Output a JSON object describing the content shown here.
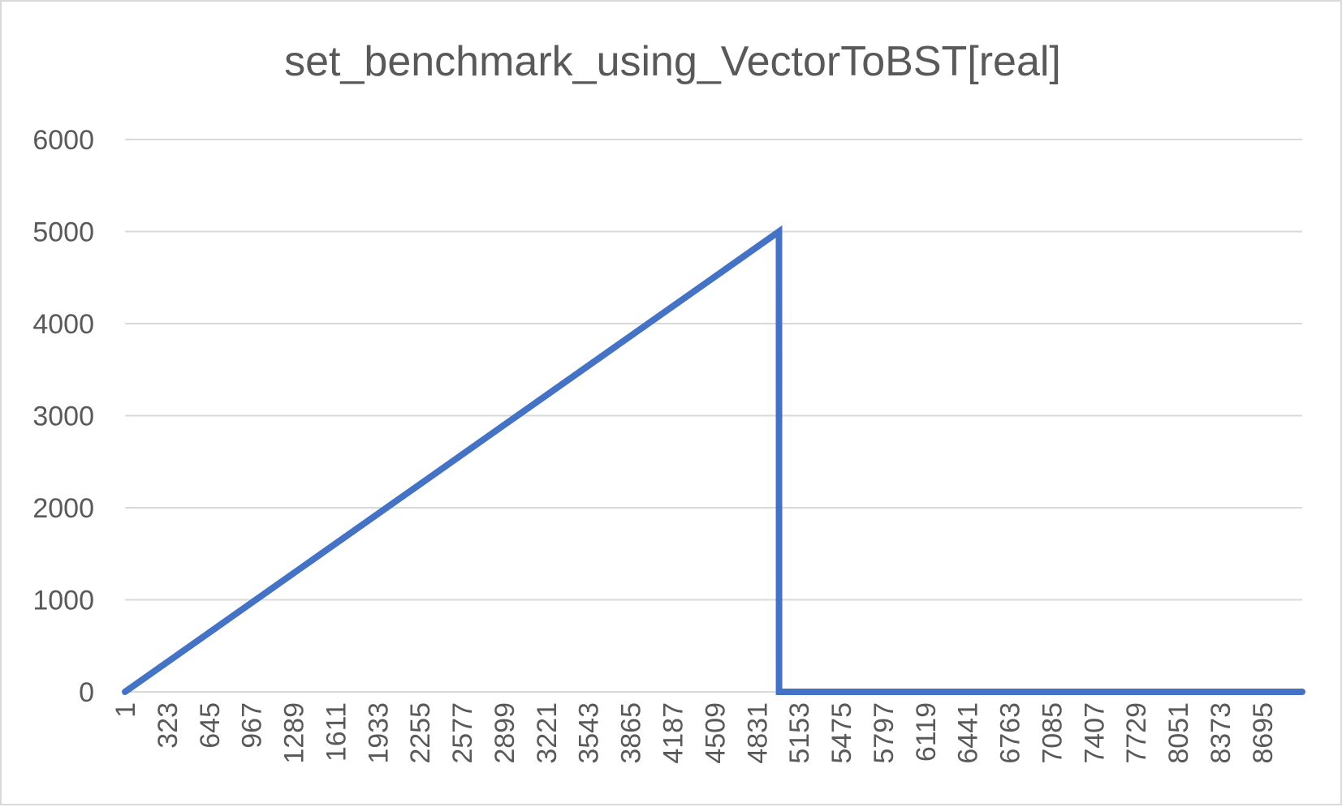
{
  "chart_data": {
    "type": "line",
    "title": "set_benchmark_using_VectorToBST[real]",
    "xlabel": "",
    "ylabel": "",
    "x_tick_labels": [
      "1",
      "323",
      "645",
      "967",
      "1289",
      "1611",
      "1933",
      "2255",
      "2577",
      "2899",
      "3221",
      "3543",
      "3865",
      "4187",
      "4509",
      "4831",
      "5153",
      "5475",
      "5797",
      "6119",
      "6441",
      "6763",
      "7085",
      "7407",
      "7729",
      "8051",
      "8373",
      "8695"
    ],
    "x_range": [
      1,
      9000
    ],
    "y_range": [
      0,
      6000
    ],
    "y_ticks": [
      0,
      1000,
      2000,
      3000,
      4000,
      5000,
      6000
    ],
    "grid": true,
    "legend": "none",
    "series": [
      {
        "color": "#4472c4",
        "x": [
          1,
          5000,
          5001,
          9000
        ],
        "y": [
          0,
          5000,
          0,
          0
        ]
      }
    ]
  }
}
